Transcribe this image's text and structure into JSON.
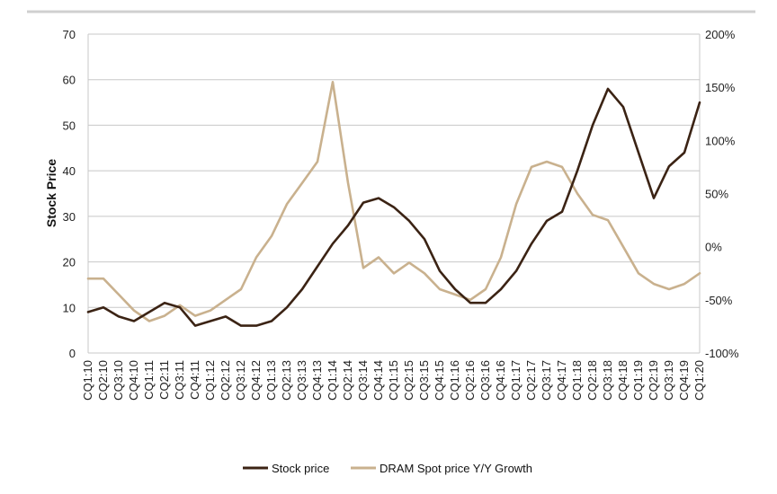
{
  "chart_data": {
    "type": "line",
    "ylabel": "Stock Price",
    "ylim": [
      0,
      70
    ],
    "y_ticks": [
      "0",
      "10",
      "20",
      "30",
      "40",
      "50",
      "60",
      "70"
    ],
    "y2lim": [
      -100,
      200
    ],
    "y2_ticks": [
      "-100%",
      "-50%",
      "0%",
      "50%",
      "100%",
      "150%",
      "200%"
    ],
    "grid": true,
    "legend_position": "bottom",
    "categories": [
      "CQ1:10",
      "CQ2:10",
      "CQ3:10",
      "CQ4:10",
      "CQ1:11",
      "CQ2:11",
      "CQ3:11",
      "CQ4:11",
      "CQ1:12",
      "CQ2:12",
      "CQ3:12",
      "CQ4:12",
      "CQ1:13",
      "CQ2:13",
      "CQ3:13",
      "CQ4:13",
      "CQ1:14",
      "CQ2:14",
      "CQ3:14",
      "CQ4:14",
      "CQ1:15",
      "CQ2:15",
      "CQ3:15",
      "CQ4:15",
      "CQ1:16",
      "CQ2:16",
      "CQ3:16",
      "CQ4:16",
      "CQ1:17",
      "CQ2:17",
      "CQ3:17",
      "CQ4:17",
      "CQ1:18",
      "CQ2:18",
      "CQ3:18",
      "CQ4:18",
      "CQ1:19",
      "CQ2:19",
      "CQ3:19",
      "CQ4:19",
      "CQ1:20"
    ],
    "x_tick_labels": [
      "CQ1:10",
      "CQ2:10",
      "CQ3:10",
      "CQ4:10",
      "CQ1:11",
      "CQ2:11",
      "CQ3:11",
      "CQ4:11",
      "CQ1:12",
      "CQ2:12",
      "CQ3:12",
      "CQ4:12",
      "CQ1:13",
      "CQ2:13",
      "CQ3:13",
      "CQ4:13",
      "CQ1:14",
      "CQ2:14",
      "CQ3:14",
      "CQ4:14",
      "CQ1:15",
      "CQ2:15",
      "CQ3:15",
      "CQ4:15",
      "CQ1:16",
      "CQ2:16",
      "CQ3:16",
      "CQ4:16",
      "CQ1:17",
      "CQ2:17",
      "CQ3:17",
      "CQ4:17",
      "CQ1:18",
      "CQ2:18",
      "CQ3:18",
      "CQ4:18",
      "CQ1:19",
      "CQ2:19",
      "CQ3:19",
      "CQ4:19",
      "CQ1:20"
    ],
    "series": [
      {
        "name": "Stock price",
        "axis": "left",
        "color": "#3b2314",
        "values": [
          9,
          10,
          8,
          7,
          9,
          11,
          10,
          6,
          7,
          8,
          6,
          6,
          7,
          10,
          14,
          19,
          24,
          28,
          33,
          34,
          32,
          29,
          25,
          18,
          14,
          11,
          11,
          14,
          18,
          24,
          29,
          31,
          40,
          50,
          58,
          54,
          44,
          34,
          41,
          44,
          55
        ]
      },
      {
        "name": "DRAM Spot price Y/Y Growth",
        "axis": "right",
        "color": "#c9b18e",
        "values": [
          -30,
          -30,
          -45,
          -60,
          -70,
          -65,
          -55,
          -65,
          -60,
          -50,
          -40,
          -10,
          10,
          40,
          60,
          80,
          155,
          60,
          -20,
          -10,
          -25,
          -15,
          -25,
          -40,
          -45,
          -50,
          -40,
          -10,
          40,
          75,
          80,
          75,
          50,
          30,
          25,
          0,
          -25,
          -35,
          -40,
          -35,
          -25
        ]
      }
    ]
  }
}
